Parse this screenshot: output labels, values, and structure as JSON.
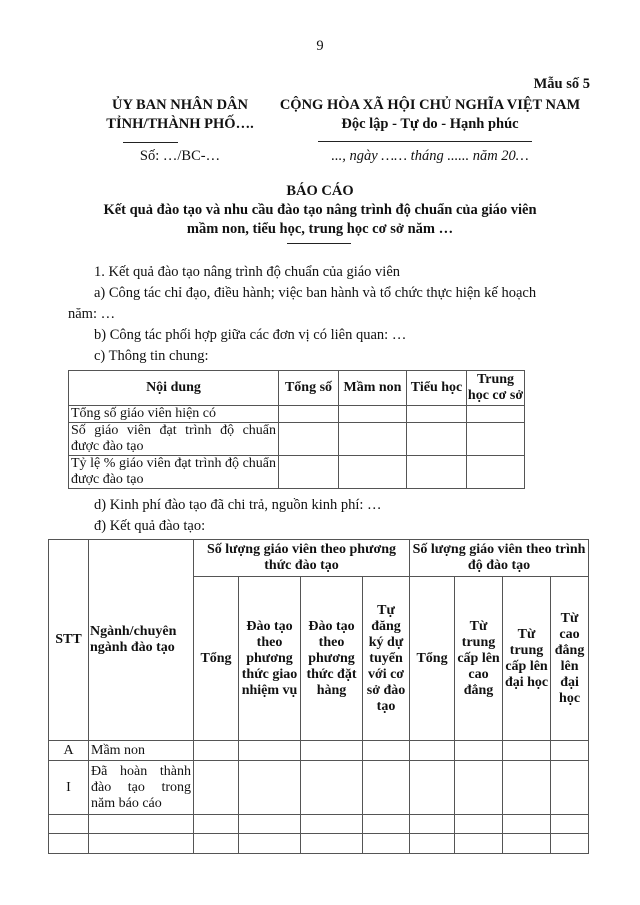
{
  "page_number": "9",
  "form_number": "Mẫu số 5",
  "agency": {
    "line1": "ỦY BAN NHÂN DÂN",
    "line2": "TỈNH/THÀNH PHỐ….",
    "doc_number": "Số: …/BC-…"
  },
  "motto": {
    "line1": "CỘNG HÒA XÃ HỘI CHỦ NGHĨA VIỆT NAM",
    "line2": "Độc lập - Tự do - Hạnh phúc",
    "date": "..., ngày …… tháng ...... năm 20…"
  },
  "title": {
    "main": "BÁO CÁO",
    "sub1": "Kết quả đào tạo và nhu cầu đào tạo nâng trình độ chuẩn của giáo viên",
    "sub2": "mầm non, tiểu học, trung học cơ sở năm …"
  },
  "body": {
    "section1": "1. Kết quả đào tạo nâng trình độ chuẩn của giáo viên",
    "a_line1": "a) Công tác chỉ đạo, điều hành; việc ban hành và tổ chức thực hiện kế hoạch",
    "a_line2": "năm: …",
    "b": "b) Công tác phối hợp giữa các đơn vị có liên quan: …",
    "c": "c) Thông tin chung:",
    "d": "d) Kinh phí đào tạo đã chi trả, nguồn kinh phí: …",
    "dd": "đ) Kết quả đào tạo:"
  },
  "table1": {
    "headers": [
      "Nội dung",
      "Tổng số",
      "Mầm non",
      "Tiểu học",
      "Trung học cơ sở"
    ],
    "rows": [
      "Tổng số giáo viên hiện có",
      "Số giáo viên đạt trình độ chuẩn được đào tạo",
      "Tỷ lệ % giáo viên đạt trình độ chuẩn được đào tạo"
    ]
  },
  "table2": {
    "stt": "STT",
    "major": "Ngành/chuyên ngành đào tạo",
    "group1": "Số lượng giáo viên theo phương thức đào tạo",
    "group2": "Số lượng giáo viên theo trình độ đào tạo",
    "group1_cols": [
      "Tổng",
      "Đào tạo theo phương thức giao nhiệm vụ",
      "Đào tạo theo phương thức đặt hàng",
      "Tự đăng ký dự tuyển với cơ sở đào tạo"
    ],
    "group2_cols": [
      "Tổng",
      "Từ trung cấp lên cao đẳng",
      "Từ trung cấp lên đại học",
      "Từ cao đẳng lên đại học"
    ],
    "rows": [
      {
        "stt": "A",
        "name": "Mầm non"
      },
      {
        "stt": "I",
        "name": "Đã hoàn thành đào tạo trong năm báo cáo"
      },
      {
        "stt": "",
        "name": ""
      },
      {
        "stt": "",
        "name": ""
      }
    ]
  }
}
